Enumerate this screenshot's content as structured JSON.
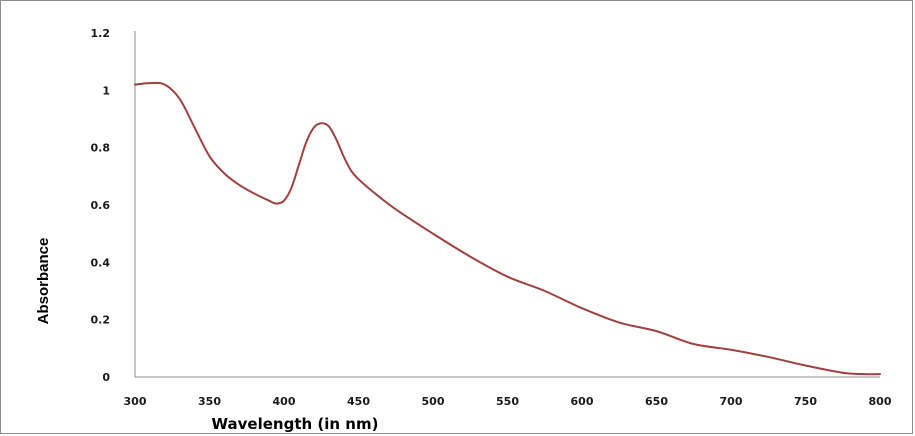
{
  "chart_data": {
    "type": "line",
    "title": "",
    "xlabel": "Wavelength (in nm)",
    "ylabel": "Absorbance",
    "xlim": [
      300,
      800
    ],
    "ylim": [
      0,
      1.2
    ],
    "x_ticks": [
      "300",
      "350",
      "400",
      "450",
      "500",
      "550",
      "600",
      "650",
      "700",
      "750",
      "800"
    ],
    "y_ticks": [
      "0",
      "0.2",
      "0.4",
      "0.6",
      "0.8",
      "1",
      "1.2"
    ],
    "grid": false,
    "legend": "none",
    "line_color": "#a04040",
    "series": [
      {
        "x": [
          300,
          310,
          320,
          330,
          340,
          350,
          360,
          370,
          380,
          390,
          395,
          400,
          405,
          410,
          415,
          420,
          425,
          430,
          435,
          440,
          445,
          450,
          460,
          475,
          500,
          525,
          550,
          575,
          600,
          625,
          650,
          675,
          700,
          725,
          750,
          775,
          790,
          800
        ],
        "y": [
          1.02,
          1.025,
          1.02,
          0.97,
          0.87,
          0.77,
          0.71,
          0.67,
          0.64,
          0.615,
          0.605,
          0.615,
          0.66,
          0.74,
          0.82,
          0.87,
          0.885,
          0.875,
          0.83,
          0.77,
          0.72,
          0.69,
          0.645,
          0.585,
          0.5,
          0.42,
          0.35,
          0.3,
          0.24,
          0.19,
          0.16,
          0.115,
          0.095,
          0.07,
          0.04,
          0.015,
          0.01,
          0.01
        ]
      }
    ]
  }
}
